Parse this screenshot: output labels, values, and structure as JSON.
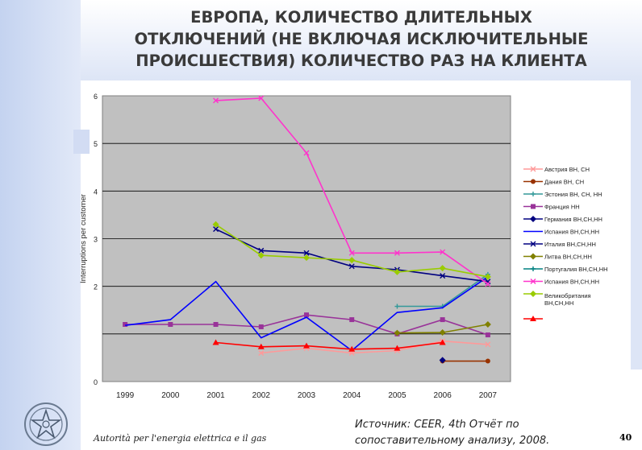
{
  "title_lines": [
    "ЕВРОПА, КОЛИЧЕСТВО ДЛИТЕЛЬНЫХ",
    "ОТКЛЮЧЕНИЙ (НЕ ВКЛЮЧАЯ ИСКЛЮЧИТЕЛЬНЫЕ",
    "ПРОИСШЕСТВИЯ) КОЛИЧЕСТВО РАЗ НА КЛИЕНТА"
  ],
  "footer": {
    "authority": "Autorità per l'energia elettrica e il gas",
    "source_line1": "Источник: CEER, 4th Отчёт по",
    "source_line2": "сопоставительному анализу, 2008.",
    "page_number": "40"
  },
  "colors": {
    "plot_bg": "#c0c0c0",
    "band": "#dde5f6"
  },
  "chart_data": {
    "type": "line",
    "title": "",
    "ylabel": "Interruptions per customer",
    "xlabel": "",
    "ylim": [
      0,
      6
    ],
    "yticks": [
      0,
      1,
      2,
      3,
      4,
      5,
      6
    ],
    "ytick_labels": [
      "0",
      "",
      "2",
      "3",
      "4",
      "5",
      "6"
    ],
    "x": [
      1999,
      2000,
      2001,
      2002,
      2003,
      2004,
      2005,
      2006,
      2007
    ],
    "grid": true,
    "legend_position": "right",
    "series": [
      {
        "name": "Австрия ВН, СН",
        "color": "#ff9999",
        "marker": "x",
        "values": [
          null,
          null,
          null,
          0.6,
          0.7,
          0.6,
          0.65,
          0.85,
          0.78
        ]
      },
      {
        "name": "Дания ВН, СН",
        "color": "#993300",
        "marker": "circle",
        "values": [
          null,
          null,
          null,
          null,
          null,
          null,
          null,
          0.43,
          0.43
        ]
      },
      {
        "name": "Эстония ВН, СН, НН",
        "color": "#339999",
        "marker": "plus",
        "values": [
          null,
          null,
          null,
          null,
          null,
          null,
          1.58,
          1.58,
          2.25
        ]
      },
      {
        "name": "Франция НН",
        "color": "#993399",
        "marker": "square",
        "values": [
          1.2,
          1.2,
          1.2,
          1.15,
          1.4,
          1.3,
          1.0,
          1.3,
          0.98
        ]
      },
      {
        "name": "Германия ВН,СН,НН",
        "color": "#000080",
        "marker": "diamond",
        "values": [
          null,
          null,
          null,
          null,
          null,
          null,
          null,
          0.45,
          null
        ]
      },
      {
        "name": "Испания ВН,СН,НН",
        "color": "#0000ff",
        "marker": "none",
        "values": [
          1.18,
          1.3,
          2.1,
          0.92,
          1.35,
          0.65,
          1.45,
          1.55,
          2.2
        ]
      },
      {
        "name": "Италия ВН,СН,НН",
        "color": "#000080",
        "marker": "x",
        "values": [
          null,
          null,
          3.2,
          2.75,
          2.7,
          2.42,
          2.35,
          2.22,
          2.1
        ]
      },
      {
        "name": "Литва ВН,СН,НН",
        "color": "#808000",
        "marker": "diamond",
        "values": [
          null,
          null,
          null,
          null,
          null,
          null,
          1.02,
          1.03,
          1.2
        ]
      },
      {
        "name": "Португалия ВН,СН,НН",
        "color": "#008080",
        "marker": "plus",
        "values": [
          null,
          null,
          null,
          null,
          null,
          null,
          null,
          null,
          null
        ]
      },
      {
        "name": "Испания ВН,СН,НН",
        "color": "#ff33cc",
        "marker": "x",
        "values": [
          null,
          null,
          5.9,
          5.95,
          4.8,
          2.7,
          2.7,
          2.72,
          2.05
        ]
      },
      {
        "name": "Великобритания ВН,СН,НН",
        "color": "#99cc00",
        "marker": "diamond",
        "values": [
          null,
          null,
          3.3,
          2.65,
          2.6,
          2.55,
          2.3,
          2.38,
          2.2
        ]
      },
      {
        "name": "",
        "color": "#ff0000",
        "marker": "triangle",
        "values": [
          null,
          null,
          0.82,
          0.73,
          0.75,
          0.68,
          0.7,
          0.82,
          null
        ]
      }
    ]
  }
}
